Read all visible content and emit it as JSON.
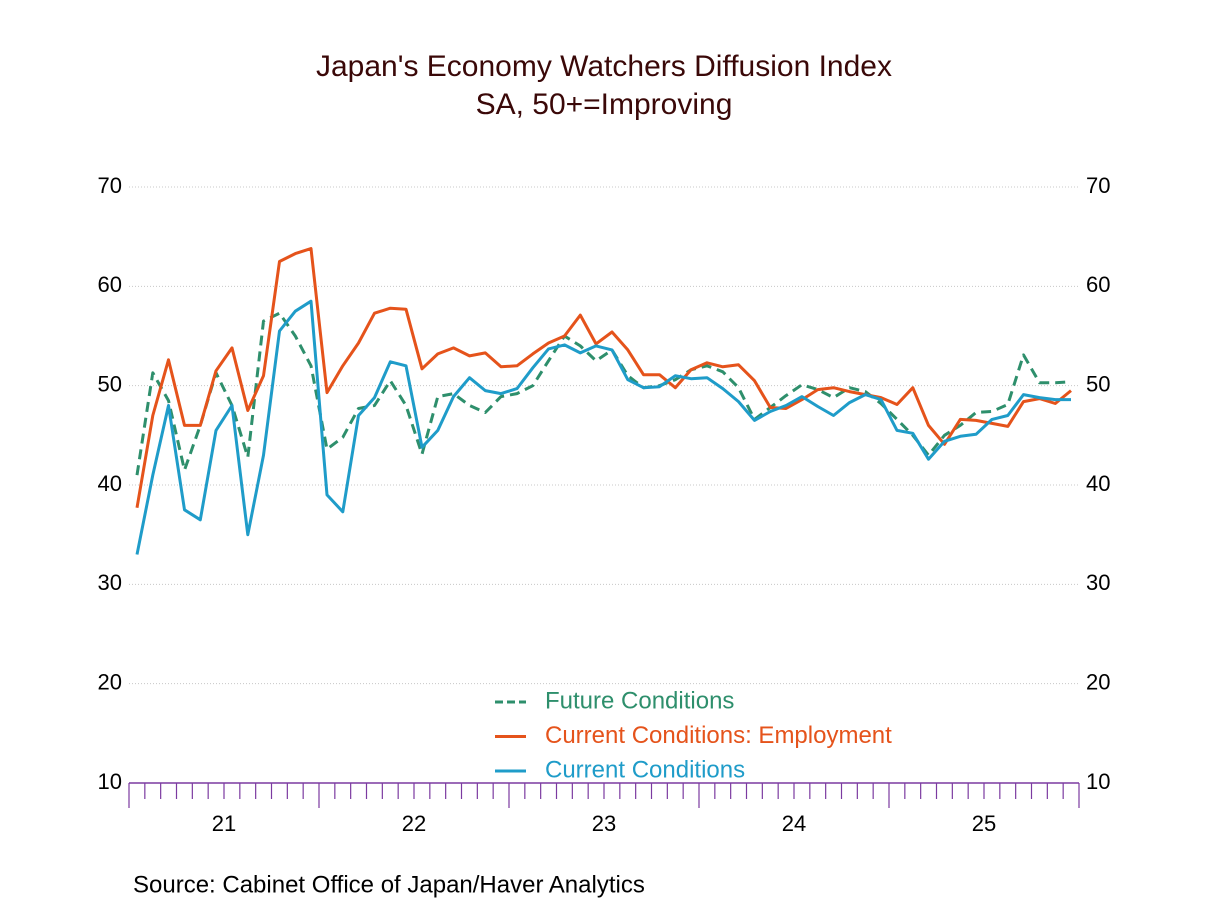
{
  "chart_data": {
    "type": "line",
    "title": "Japan's Economy Watchers Diffusion Index",
    "subtitle": "SA, 50+=Improving",
    "source": "Source:  Cabinet Office of Japan/Haver Analytics",
    "x": [
      21.042,
      21.125,
      21.208,
      21.292,
      21.375,
      21.458,
      21.542,
      21.625,
      21.708,
      21.792,
      21.875,
      21.958,
      22.042,
      22.125,
      22.208,
      22.292,
      22.375,
      22.458,
      22.542,
      22.625,
      22.708,
      22.792,
      22.875,
      22.958,
      23.042,
      23.125,
      23.208,
      23.292,
      23.375,
      23.458,
      23.542,
      23.625,
      23.708,
      23.792,
      23.875,
      23.958,
      24.042,
      24.125,
      24.208,
      24.292,
      24.375,
      24.458,
      24.542,
      24.625,
      24.708,
      24.792,
      24.875,
      24.958,
      25.042,
      25.125,
      25.208,
      25.292,
      25.375,
      25.458,
      25.542,
      25.625,
      25.708,
      25.792,
      25.875,
      25.958
    ],
    "xlim": [
      21,
      26
    ],
    "xticks": [
      {
        "value": 21.5,
        "label": "21"
      },
      {
        "value": 22.5,
        "label": "22"
      },
      {
        "value": 23.5,
        "label": "23"
      },
      {
        "value": 24.5,
        "label": "24"
      },
      {
        "value": 25.5,
        "label": "25"
      }
    ],
    "ylim": [
      10,
      70
    ],
    "yticks": [
      10,
      20,
      30,
      40,
      50,
      60,
      70
    ],
    "grid": true,
    "series": [
      {
        "name": "Future Conditions",
        "color": "#2e8f6c",
        "dash": true,
        "values": [
          41,
          51.3,
          48.5,
          41.5,
          46,
          51.3,
          48,
          42.8,
          56.5,
          57.3,
          55,
          52,
          43.6,
          44.8,
          47.7,
          48,
          50.5,
          48,
          43.1,
          48.9,
          49.2,
          48,
          47.3,
          48.9,
          49.2,
          50,
          52.5,
          55,
          54,
          52.5,
          53.6,
          51,
          49.8,
          50,
          50.6,
          51.6,
          52,
          51.4,
          49.8,
          46.6,
          47.8,
          49,
          50.1,
          49.6,
          48.8,
          49.8,
          49.4,
          48.2,
          46.6,
          45,
          43,
          45,
          46,
          47.3,
          47.4,
          48.1,
          53.1,
          50.3,
          50.3,
          50.4
        ]
      },
      {
        "name": "Current Conditions: Employment",
        "color": "#e5531b",
        "dash": false,
        "values": [
          37.7,
          47,
          52.6,
          46,
          46,
          51.5,
          53.8,
          47.5,
          51,
          62.5,
          63.3,
          63.8,
          49.3,
          52,
          54.3,
          57.3,
          57.8,
          57.7,
          51.7,
          53.2,
          53.8,
          53,
          53.3,
          51.9,
          52,
          53.2,
          54.3,
          55,
          57.1,
          54.2,
          55.4,
          53.6,
          51.1,
          51.1,
          49.8,
          51.6,
          52.3,
          51.9,
          52.1,
          50.5,
          47.8,
          47.7,
          48.6,
          49.6,
          49.8,
          49.4,
          49.1,
          48.8,
          48.1,
          49.8,
          46,
          44.1,
          46.6,
          46.5,
          46.2,
          45.9,
          48.4,
          48.7,
          48.2,
          49.5
        ]
      },
      {
        "name": "Current Conditions",
        "color": "#1f9cc9",
        "dash": false,
        "values": [
          33,
          41,
          48,
          37.5,
          36.5,
          45.5,
          48,
          35,
          43,
          55.5,
          57.5,
          58.5,
          39,
          37.3,
          47,
          48.8,
          52.4,
          52,
          43.8,
          45.5,
          48.9,
          50.8,
          49.5,
          49.2,
          49.7,
          51.8,
          53.7,
          54.1,
          53.3,
          54,
          53.6,
          50.6,
          49.8,
          49.9,
          51,
          50.7,
          50.8,
          49.7,
          48.4,
          46.5,
          47.4,
          48,
          48.9,
          47.9,
          47,
          48.3,
          49.1,
          48.6,
          45.5,
          45.2,
          42.6,
          44.4,
          44.9,
          45.1,
          46.6,
          47,
          49.1,
          48.8,
          48.6,
          48.6
        ]
      }
    ]
  }
}
